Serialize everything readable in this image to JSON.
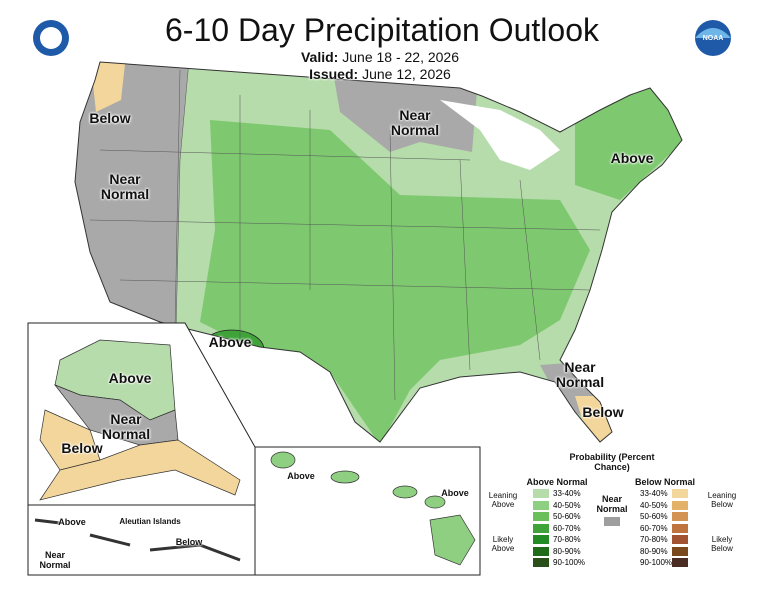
{
  "header": {
    "title": "6-10 Day Precipitation Outlook",
    "valid_label": "Valid:",
    "valid": "June 18 - 22, 2026",
    "issued_label": "Issued:",
    "issued": "June 12, 2026",
    "noaa_logo": "NOAA"
  },
  "map_labels": {
    "nw_below": "Below",
    "west_near": "Near Normal",
    "north_near": "Near Normal",
    "ne_above": "Above",
    "sw_above": "Above",
    "se_near": "Near Normal",
    "fl_below": "Below"
  },
  "alaska": {
    "above": "Above",
    "near": "Near Normal",
    "below": "Below"
  },
  "aleutians": {
    "title": "Aleutian Islands",
    "above": "Above",
    "near": "Near Normal",
    "below": "Below"
  },
  "hawaii": {
    "above_west": "Above",
    "above_east": "Above"
  },
  "legend": {
    "title": "Probability (Percent Chance)",
    "above_title": "Above Normal",
    "below_title": "Below Normal",
    "near": "Near Normal",
    "near_color": "#9e9e9e",
    "leaning_above": "Leaning Above",
    "likely_above": "Likely Above",
    "leaning_below": "Leaning Below",
    "likely_below": "Likely Below",
    "above_bins": [
      {
        "label": "33-40%",
        "color": "#b5dcaa"
      },
      {
        "label": "40-50%",
        "color": "#8fcf82"
      },
      {
        "label": "50-60%",
        "color": "#6abf5b"
      },
      {
        "label": "60-70%",
        "color": "#3fa33a"
      },
      {
        "label": "70-80%",
        "color": "#238b23"
      },
      {
        "label": "80-90%",
        "color": "#1f6b1a"
      },
      {
        "label": "90-100%",
        "color": "#285018"
      }
    ],
    "below_bins": [
      {
        "label": "33-40%",
        "color": "#f3d69b"
      },
      {
        "label": "40-50%",
        "color": "#e3b268"
      },
      {
        "label": "50-60%",
        "color": "#d39352"
      },
      {
        "label": "60-70%",
        "color": "#bf7440"
      },
      {
        "label": "70-80%",
        "color": "#a25432"
      },
      {
        "label": "80-90%",
        "color": "#7a4a1e"
      },
      {
        "label": "90-100%",
        "color": "#4a2c22"
      }
    ]
  }
}
